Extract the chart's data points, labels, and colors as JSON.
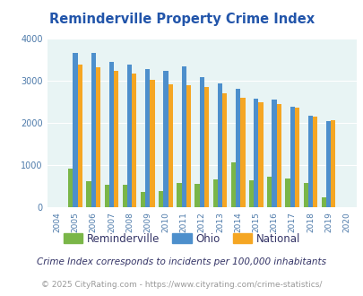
{
  "title": "Reminderville Property Crime Index",
  "years": [
    2004,
    2005,
    2006,
    2007,
    2008,
    2009,
    2010,
    2011,
    2012,
    2013,
    2014,
    2015,
    2016,
    2017,
    2018,
    2019,
    2020
  ],
  "reminderville": [
    0,
    920,
    610,
    540,
    540,
    365,
    385,
    575,
    545,
    665,
    1055,
    645,
    720,
    685,
    565,
    240,
    0
  ],
  "ohio": [
    0,
    3660,
    3660,
    3440,
    3380,
    3270,
    3240,
    3330,
    3080,
    2930,
    2810,
    2570,
    2545,
    2390,
    2160,
    2040,
    0
  ],
  "national": [
    0,
    3380,
    3320,
    3240,
    3170,
    3010,
    2910,
    2890,
    2855,
    2700,
    2590,
    2480,
    2440,
    2360,
    2150,
    2060,
    0
  ],
  "reminderville_color": "#7ab648",
  "ohio_color": "#4d8fcc",
  "national_color": "#f5a623",
  "bg_color": "#e8f4f4",
  "title_color": "#2255aa",
  "ylim": [
    0,
    4000
  ],
  "yticks": [
    0,
    1000,
    2000,
    3000,
    4000
  ],
  "footnote1": "Crime Index corresponds to incidents per 100,000 inhabitants",
  "footnote2": "© 2025 CityRating.com - https://www.cityrating.com/crime-statistics/",
  "footnote1_color": "#333366",
  "footnote2_color": "#999999",
  "bar_width": 0.26
}
